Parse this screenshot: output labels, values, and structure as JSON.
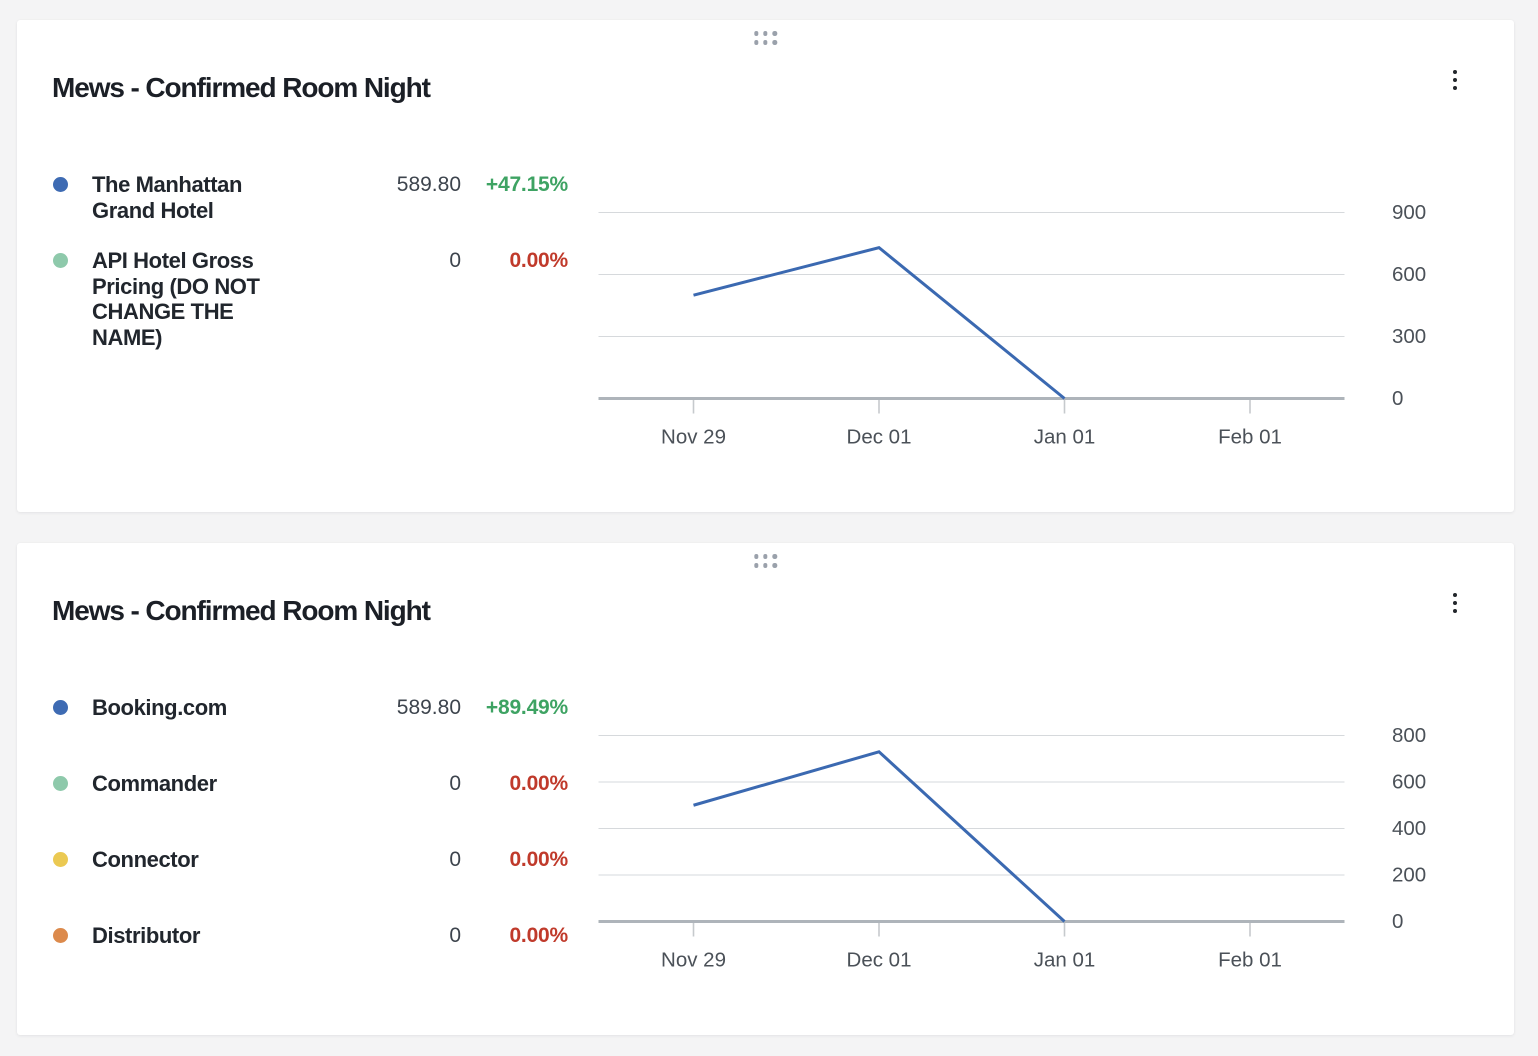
{
  "page": {
    "background_color": "#f4f4f5",
    "card_color": "#ffffff"
  },
  "colors": {
    "series_line": "#3b69b1",
    "positive_change": "#3ea363",
    "negative_or_zero_change": "#c03a2b",
    "gridline": "#d6d9dc",
    "axis_line": "#aeb4ba",
    "axis_tick": "#c6cacd",
    "axis_text": "#4b5158"
  },
  "cards": [
    {
      "title": "Mews - Confirmed Room Night",
      "drag_handle_icon": "drag-handle-dots",
      "menu_icon": "kebab-vertical-dots",
      "legend": [
        {
          "dot_color": "#3e6bb3",
          "label": "The Manhattan Grand Hotel",
          "value": "589.80",
          "change": "+47.15%",
          "change_color": "#3ea363"
        },
        {
          "dot_color": "#8ec9ab",
          "label": "API Hotel Gross Pricing (DO NOT CHANGE THE NAME)",
          "value": "0",
          "change": "0.00%",
          "change_color": "#c03a2b"
        }
      ]
    },
    {
      "title": "Mews - Confirmed Room Night",
      "drag_handle_icon": "drag-handle-dots",
      "menu_icon": "kebab-vertical-dots",
      "legend": [
        {
          "dot_color": "#3e6bb3",
          "label": "Booking.com",
          "value": "589.80",
          "change": "+89.49%",
          "change_color": "#3ea363"
        },
        {
          "dot_color": "#8ec9ab",
          "label": "Commander",
          "value": "0",
          "change": "0.00%",
          "change_color": "#c03a2b"
        },
        {
          "dot_color": "#ebc952",
          "label": "Connector",
          "value": "0",
          "change": "0.00%",
          "change_color": "#c03a2b"
        },
        {
          "dot_color": "#dc8a4c",
          "label": "Distributor",
          "value": "0",
          "change": "0.00%",
          "change_color": "#c03a2b"
        }
      ]
    }
  ],
  "chart_data": [
    {
      "type": "line",
      "title": "Mews - Confirmed Room Night",
      "categories": [
        "Nov 29",
        "Dec 01",
        "Jan 01",
        "Feb 01"
      ],
      "series": [
        {
          "name": "The Manhattan Grand Hotel",
          "color": "#3b69b1",
          "values": [
            500,
            730,
            0,
            null
          ]
        }
      ],
      "y_ticks": [
        0,
        300,
        600,
        900
      ],
      "ylim": [
        0,
        900
      ],
      "xlabel": "",
      "ylabel": "",
      "y_axis_side": "right",
      "grid": true,
      "legend_position": "left"
    },
    {
      "type": "line",
      "title": "Mews - Confirmed Room Night",
      "categories": [
        "Nov 29",
        "Dec 01",
        "Jan 01",
        "Feb 01"
      ],
      "series": [
        {
          "name": "Booking.com",
          "color": "#3b69b1",
          "values": [
            500,
            730,
            0,
            null
          ]
        }
      ],
      "y_ticks": [
        0,
        200,
        400,
        600,
        800
      ],
      "ylim": [
        0,
        800
      ],
      "xlabel": "",
      "ylabel": "",
      "y_axis_side": "right",
      "grid": true,
      "legend_position": "left"
    }
  ]
}
